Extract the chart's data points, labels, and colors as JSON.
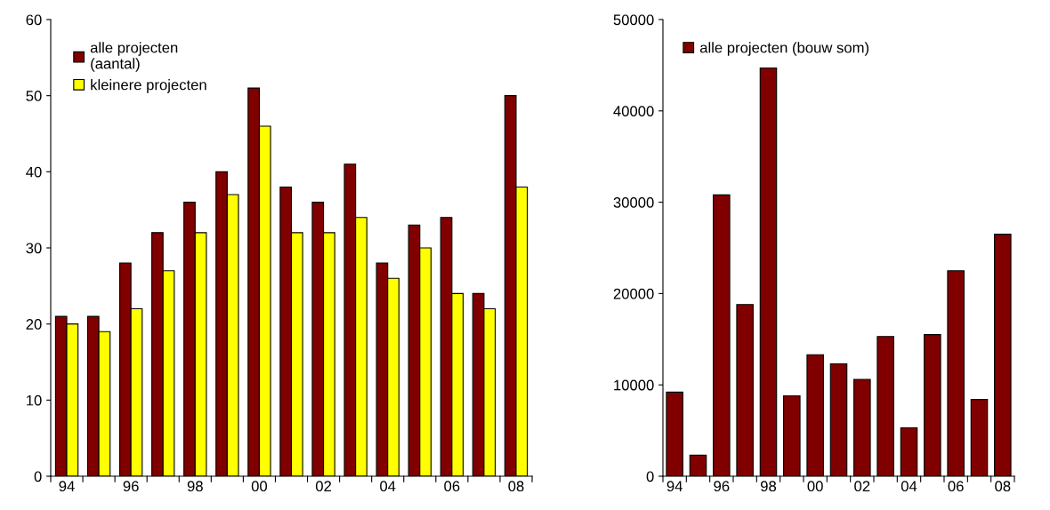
{
  "chart_data": [
    {
      "type": "bar",
      "categories": [
        "94",
        null,
        "96",
        null,
        "98",
        null,
        "00",
        null,
        "02",
        null,
        "04",
        null,
        "06",
        null,
        "08"
      ],
      "series": [
        {
          "name": "alle projecten\n(aantal)",
          "color": "#800000",
          "values": [
            21,
            21,
            28,
            32,
            36,
            40,
            51,
            38,
            36,
            41,
            28,
            33,
            34,
            24,
            50
          ]
        },
        {
          "name": "kleinere projecten",
          "color": "#ffff00",
          "values": [
            20,
            19,
            22,
            27,
            32,
            37,
            46,
            32,
            32,
            34,
            26,
            30,
            24,
            22,
            38
          ]
        }
      ],
      "ylim": [
        0,
        60
      ],
      "yticks": [
        0,
        10,
        20,
        30,
        40,
        50,
        60
      ],
      "grid": false,
      "legend": "top left"
    },
    {
      "type": "bar",
      "categories": [
        "94",
        null,
        "96",
        null,
        "98",
        null,
        "00",
        null,
        "02",
        null,
        "04",
        null,
        "06",
        null,
        "08"
      ],
      "series": [
        {
          "name": "alle projecten (bouw som)",
          "color": "#800000",
          "values": [
            9200,
            2300,
            30800,
            18800,
            44700,
            8800,
            13300,
            12300,
            10600,
            15300,
            5300,
            15500,
            22500,
            8400,
            26500
          ]
        }
      ],
      "ylim": [
        0,
        50000
      ],
      "yticks": [
        0,
        10000,
        20000,
        30000,
        40000,
        50000
      ],
      "grid": false,
      "legend": "top left"
    }
  ]
}
